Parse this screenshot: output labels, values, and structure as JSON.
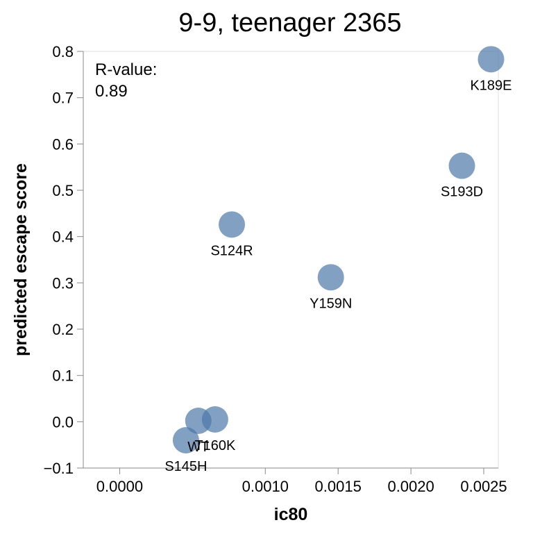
{
  "chart_data": {
    "type": "scatter",
    "title": "9-9, teenager 2365",
    "xlabel": "ic80",
    "ylabel": "predicted escape score",
    "xlim": [
      -0.00025,
      0.0026
    ],
    "ylim": [
      -0.1,
      0.8
    ],
    "x_ticks": [
      {
        "value": 0.0,
        "label": "0.0000"
      },
      {
        "value": 0.001,
        "label": "0.0010"
      },
      {
        "value": 0.0015,
        "label": "0.0015"
      },
      {
        "value": 0.002,
        "label": "0.0020"
      },
      {
        "value": 0.0025,
        "label": "0.0025"
      }
    ],
    "y_ticks": [
      {
        "value": -0.1,
        "label": "−0.1"
      },
      {
        "value": 0.0,
        "label": "0.0"
      },
      {
        "value": 0.1,
        "label": "0.1"
      },
      {
        "value": 0.2,
        "label": "0.2"
      },
      {
        "value": 0.3,
        "label": "0.3"
      },
      {
        "value": 0.4,
        "label": "0.4"
      },
      {
        "value": 0.5,
        "label": "0.5"
      },
      {
        "value": 0.6,
        "label": "0.6"
      },
      {
        "value": 0.7,
        "label": "0.7"
      },
      {
        "value": 0.8,
        "label": "0.8"
      }
    ],
    "points": [
      {
        "label": "K189E",
        "x": 0.00255,
        "y": 0.783
      },
      {
        "label": "S193D",
        "x": 0.00235,
        "y": 0.553
      },
      {
        "label": "S124R",
        "x": 0.00077,
        "y": 0.426
      },
      {
        "label": "Y159N",
        "x": 0.00145,
        "y": 0.312
      },
      {
        "label": "T160K",
        "x": 0.000655,
        "y": 0.005
      },
      {
        "label": "WT",
        "x": 0.00054,
        "y": 0.002
      },
      {
        "label": "S145H",
        "x": 0.000455,
        "y": -0.04
      }
    ],
    "annotation": {
      "label": "R-value:",
      "value": "0.89"
    },
    "grid": false,
    "legend": "none",
    "point_color": "#4c78a8"
  }
}
